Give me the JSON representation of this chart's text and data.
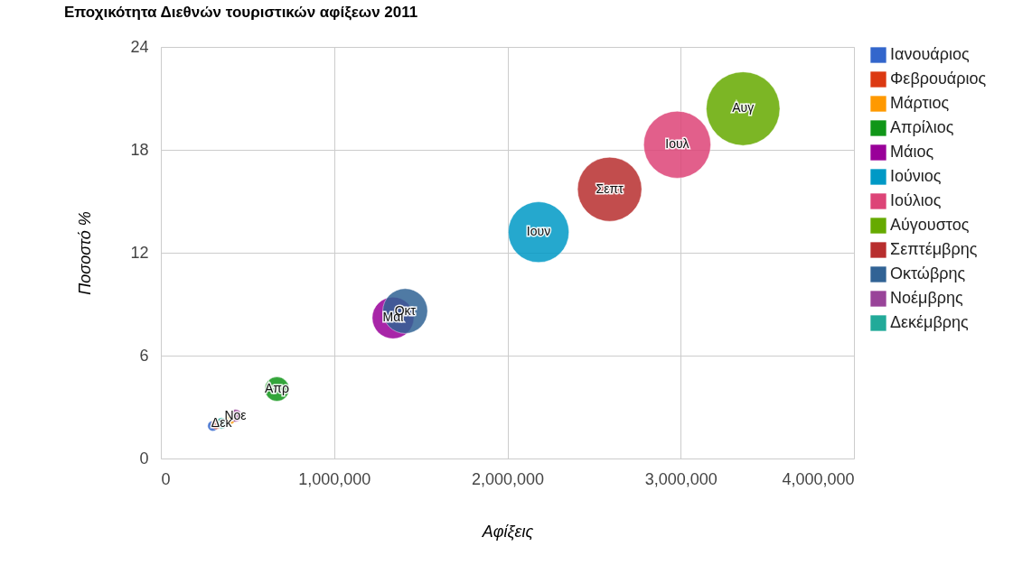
{
  "chart_data": {
    "type": "bubble",
    "title": "Εποχικότητα Διεθνών τουριστικών αφίξεων 2011",
    "xlabel": "Αφίξεις",
    "ylabel": "Ποσοστό %",
    "xlim": [
      0,
      4000000
    ],
    "xticks": [
      0,
      {
        "value": 1000000,
        "label": "1,000,000"
      },
      {
        "value": 2000000,
        "label": "2,000,000"
      },
      {
        "value": 3000000,
        "label": "3,000,000"
      },
      {
        "value": 4000000,
        "label": "4,000,000"
      }
    ],
    "ylim": [
      0,
      24
    ],
    "yticks": [
      0,
      6,
      12,
      18,
      24
    ],
    "grid": true,
    "legend": "right",
    "series": [
      {
        "name": "Ιανουάριος",
        "color": "#3366cc",
        "x": [
          300000
        ],
        "values": [
          1.9
        ],
        "sizes": [
          0.02
        ],
        "value_labels": [
          null
        ]
      },
      {
        "name": "Φεβρουάριος",
        "color": "#dc3912",
        "x": [
          320000
        ],
        "values": [
          2.0
        ],
        "sizes": [
          0.02
        ],
        "value_labels": [
          null
        ]
      },
      {
        "name": "Μάρτιος",
        "color": "#ff9900",
        "x": [
          400000
        ],
        "values": [
          2.3
        ],
        "sizes": [
          0.02
        ],
        "value_labels": [
          null
        ]
      },
      {
        "name": "Απρίλιος",
        "color": "#109618",
        "x": [
          670000
        ],
        "values": [
          4.05
        ],
        "sizes": [
          0.11
        ],
        "value_labels": [
          "Απρ"
        ]
      },
      {
        "name": "Μάιος",
        "color": "#990099",
        "x": [
          1340000
        ],
        "values": [
          8.2
        ],
        "sizes": [
          0.32
        ],
        "value_labels": [
          "Μαι"
        ]
      },
      {
        "name": "Ιούνιος",
        "color": "#0099c6",
        "x": [
          2180000
        ],
        "values": [
          13.2
        ],
        "sizes": [
          0.68
        ],
        "value_labels": [
          "Ιουν"
        ]
      },
      {
        "name": "Ιούλιος",
        "color": "#dd4477",
        "x": [
          2980000
        ],
        "values": [
          18.3
        ],
        "sizes": [
          0.83
        ],
        "value_labels": [
          "Ιουλ"
        ]
      },
      {
        "name": "Αύγουστος",
        "color": "#66aa00",
        "x": [
          3360000
        ],
        "values": [
          20.4
        ],
        "sizes": [
          1
        ],
        "value_labels": [
          "Αυγ"
        ]
      },
      {
        "name": "Σεπτέμβρης",
        "color": "#b82e2e",
        "x": [
          2590000
        ],
        "values": [
          15.7
        ],
        "sizes": [
          0.76
        ],
        "value_labels": [
          "Σεπτ"
        ]
      },
      {
        "name": "Οκτώβρης",
        "color": "#316395",
        "x": [
          1410000
        ],
        "values": [
          8.6
        ],
        "sizes": [
          0.37
        ],
        "value_labels": [
          "Οκτ"
        ]
      },
      {
        "name": "Νοέμβρης",
        "color": "#994499",
        "x": [
          430000
        ],
        "values": [
          2.5
        ],
        "sizes": [
          0.03
        ],
        "value_labels": [
          "Νοε"
        ]
      },
      {
        "name": "Δεκέμβρης",
        "color": "#22aa99",
        "x": [
          350000
        ],
        "values": [
          2.05
        ],
        "sizes": [
          0.023
        ],
        "value_labels": [
          "Δεκ"
        ]
      }
    ]
  }
}
